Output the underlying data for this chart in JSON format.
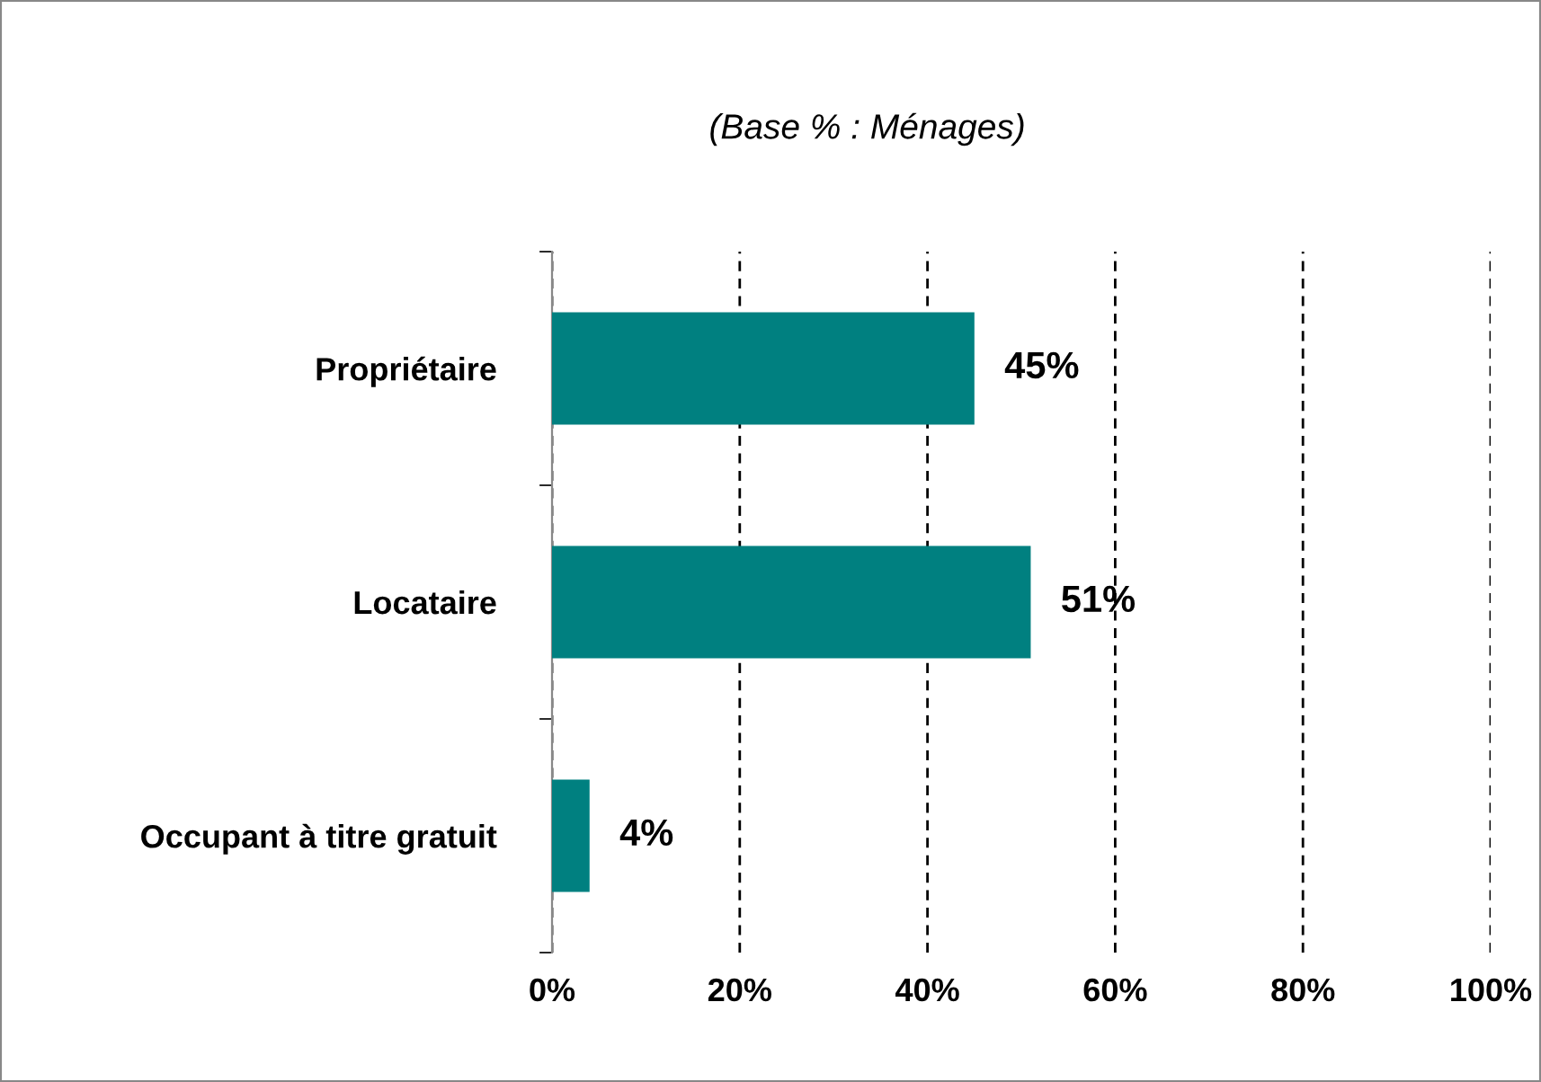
{
  "chart_data": {
    "type": "bar",
    "orientation": "horizontal",
    "title": "(Base % : Ménages)",
    "categories": [
      "Propriétaire",
      "Locataire",
      "Occupant à titre gratuit"
    ],
    "values": [
      45,
      51,
      4
    ],
    "color": "#008080",
    "value_labels": [
      "45%",
      "51%",
      "4%"
    ],
    "xlim": [
      0,
      100
    ],
    "xticks": [
      {
        "value": 0,
        "label": "0%"
      },
      {
        "value": 20,
        "label": "20%"
      },
      {
        "value": 40,
        "label": "40%"
      },
      {
        "value": 60,
        "label": "60%"
      },
      {
        "value": 80,
        "label": "80%"
      },
      {
        "value": 100,
        "label": "100%"
      }
    ],
    "grid": "x",
    "legend": false
  }
}
